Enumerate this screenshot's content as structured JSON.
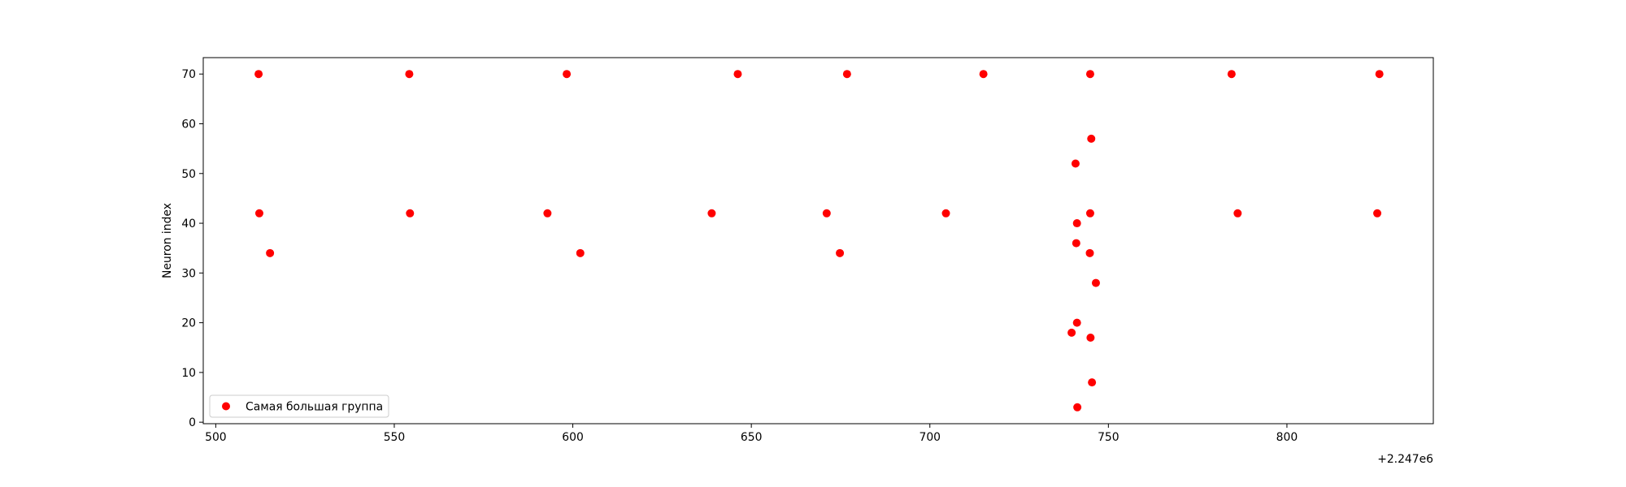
{
  "chart_data": {
    "type": "scatter",
    "title": "",
    "xlabel": "",
    "ylabel": "Neuron index",
    "x_offset_label": "+2.247e6",
    "xlim": [
      496.5,
      841.0
    ],
    "ylim": [
      -0.3,
      73.3
    ],
    "xticks": [
      500,
      550,
      600,
      650,
      700,
      750,
      800
    ],
    "yticks": [
      0,
      10,
      20,
      30,
      40,
      50,
      60,
      70
    ],
    "xtick_labels": [
      "500",
      "550",
      "600",
      "650",
      "700",
      "750",
      "800"
    ],
    "ytick_labels": [
      "0",
      "10",
      "20",
      "30",
      "40",
      "50",
      "60",
      "70"
    ],
    "grid": false,
    "legend_position": "lower-left",
    "marker_color": "#ff0000",
    "series": [
      {
        "name": "Самая большая группа",
        "x": [
          512.0,
          554.2,
          598.3,
          646.2,
          676.8,
          715.0,
          744.9,
          784.5,
          825.9,
          512.2,
          554.4,
          592.9,
          638.9,
          671.1,
          704.5,
          744.9,
          786.2,
          825.3,
          515.2,
          602.1,
          674.8,
          744.8,
          745.2,
          740.8,
          741.2,
          741.0,
          746.5,
          741.2,
          739.7,
          745.0,
          745.4,
          741.3
        ],
        "y": [
          70,
          70,
          70,
          70,
          70,
          70,
          70,
          70,
          70,
          42,
          42,
          42,
          42,
          42,
          42,
          42,
          42,
          42,
          34,
          34,
          34,
          34,
          57,
          52,
          40,
          36,
          28,
          20,
          18,
          17,
          8,
          3
        ]
      }
    ]
  }
}
